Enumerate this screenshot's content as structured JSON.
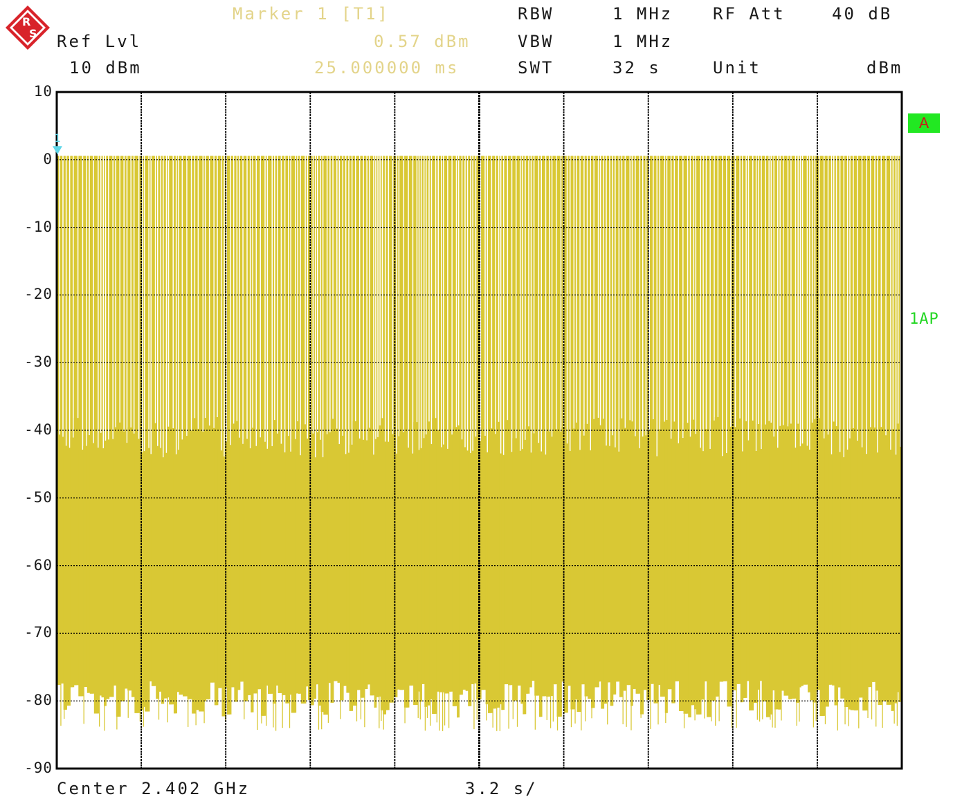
{
  "header": {
    "ref_label": "Ref Lvl",
    "ref_value": "10 dBm",
    "marker_title": "Marker 1 [T1]",
    "marker_level": "0.57 dBm",
    "marker_time": "25.000000 ms",
    "rbw_label": "RBW",
    "rbw_value": "1 MHz",
    "vbw_label": "VBW",
    "vbw_value": "1 MHz",
    "swt_label": "SWT",
    "swt_value": "32 s",
    "rfatt_label": "RF Att",
    "rfatt_value": "40 dB",
    "unit_label": "Unit",
    "unit_value": "dBm"
  },
  "trace_label": "A",
  "detector_label": "1AP",
  "marker_number": "1",
  "footer": {
    "center": "Center 2.402 GHz",
    "span": "3.2 s/"
  },
  "colors": {
    "trace": "#d9c834",
    "marker": "#5fd6e8",
    "grid": "#000000",
    "text_marker": "#e3d48a"
  },
  "chart_data": {
    "type": "line",
    "title": "",
    "xlabel": "",
    "ylabel": "",
    "x_unit": "s",
    "xlim": [
      0,
      32
    ],
    "y_unit": "dBm",
    "ylim": [
      -90,
      10
    ],
    "y_ticks": [
      "10",
      "0",
      "-10",
      "-20",
      "-30",
      "-40",
      "-50",
      "-60",
      "-70",
      "-80",
      "-90"
    ],
    "grid": true,
    "series": [
      {
        "peak_level": 0.57,
        "floor_min": -82.5,
        "floor_max": -77,
        "burst_upper_min": -44,
        "burst_upper_max": -38
      }
    ],
    "marker": {
      "x": 0.025,
      "y": 0.57,
      "label": "1"
    }
  }
}
